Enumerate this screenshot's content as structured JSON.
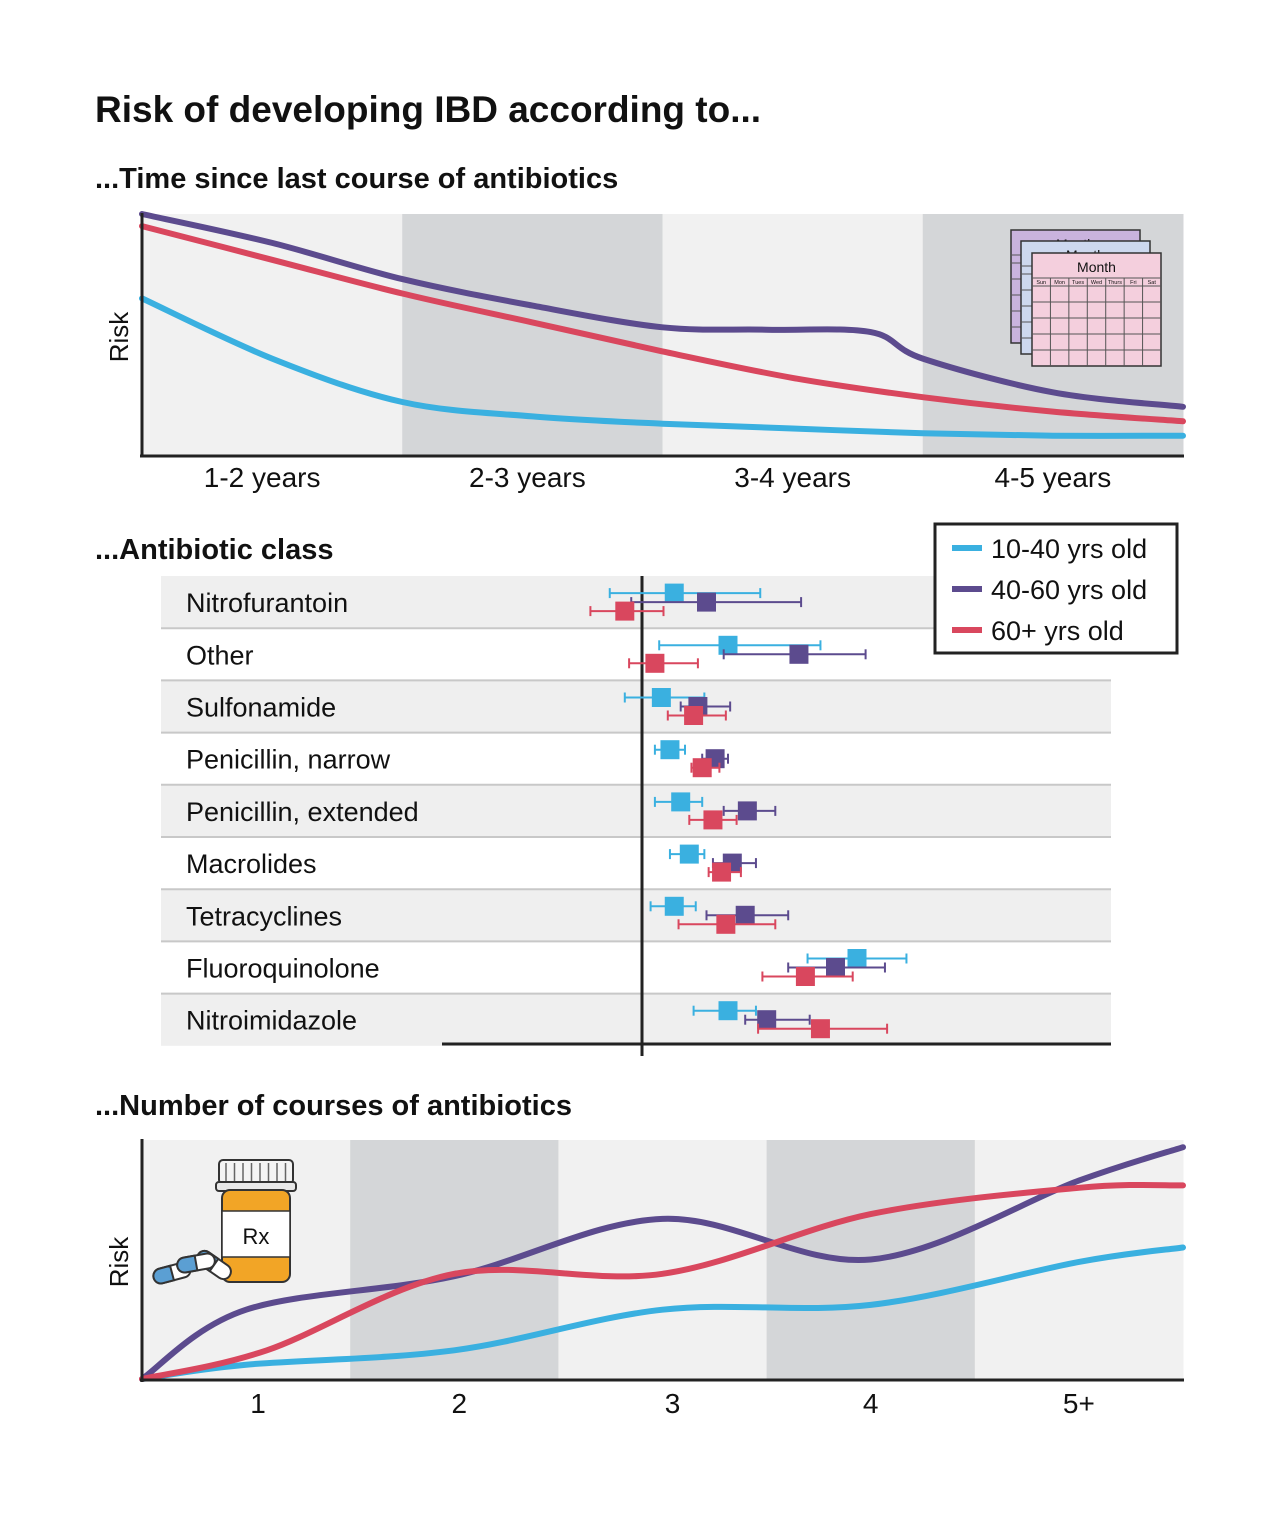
{
  "main_title": "Risk of developing IBD according to...",
  "colors": {
    "young": "#3ab0e0",
    "middle": "#5c4b8e",
    "old": "#d9475e",
    "band_dark": "#d4d6d8",
    "band_light": "#f1f1f1",
    "row_shade": "#efefef",
    "calendar_front": "#f4cfdd",
    "calendar_back1": "#cdd8ee",
    "calendar_back2": "#c9b3dd",
    "bottle": "#f2a526",
    "pill": "#5b9fd3"
  },
  "legend": {
    "position": "top-right",
    "items": [
      {
        "key": "young",
        "label": "10-40 yrs old"
      },
      {
        "key": "middle",
        "label": "40-60 yrs old"
      },
      {
        "key": "old",
        "label": "60+ yrs old"
      }
    ]
  },
  "icons": {
    "calendar": {
      "name": "calendar-icon",
      "labels": [
        "Month",
        "Month",
        "Month"
      ],
      "days": [
        "Sun",
        "Mon",
        "Tues",
        "Wed",
        "Thurs",
        "Fri",
        "Sat"
      ]
    },
    "bottle": {
      "name": "pill-bottle-icon",
      "label": "Rx"
    },
    "pills": {
      "name": "capsules-icon"
    }
  },
  "chart_data": [
    {
      "id": "time",
      "type": "line",
      "title": "...Time since last course of antibiotics",
      "ylabel": "Risk",
      "categories": [
        "1-2 years",
        "2-3 years",
        "3-4 years",
        "4-5 years"
      ],
      "xlim": [
        0,
        4
      ],
      "ylim": [
        0,
        100
      ],
      "series": [
        {
          "key": "young",
          "name": "10-40 yrs old",
          "x": [
            0,
            0.5,
            1,
            1.5,
            2,
            2.5,
            3,
            3.5,
            4
          ],
          "y": [
            65,
            40,
            22,
            16,
            13,
            11,
            9,
            8,
            8
          ]
        },
        {
          "key": "middle",
          "name": "40-60 yrs old",
          "x": [
            0,
            0.5,
            1,
            1.5,
            2,
            2.4,
            2.8,
            3,
            3.5,
            4
          ],
          "y": [
            100,
            88,
            73,
            62,
            53,
            52,
            51,
            40,
            26,
            20
          ]
        },
        {
          "key": "old",
          "name": "60+ yrs old",
          "x": [
            0,
            0.5,
            1,
            1.5,
            2,
            2.5,
            3,
            3.5,
            4
          ],
          "y": [
            95,
            81,
            67,
            55,
            43,
            32,
            24,
            18,
            14
          ]
        }
      ]
    },
    {
      "id": "class",
      "type": "forest",
      "title": "...Antibiotic class",
      "categories": [
        "Nitrofurantoin",
        "Other",
        "Sulfonamide",
        "Penicillin, narrow",
        "Penicillin, extended",
        "Macrolides",
        "Tetracyclines",
        "Fluoroquinolone",
        "Nitroimidazole"
      ],
      "reference_line": 1.0,
      "xlim": [
        0.0,
        2.45
      ],
      "series": [
        {
          "key": "young",
          "name": "10-40 yrs old",
          "estimate": [
            1.15,
            1.4,
            1.09,
            1.13,
            1.18,
            1.22,
            1.15,
            2.0,
            1.4
          ],
          "lower": [
            0.85,
            1.08,
            0.92,
            1.06,
            1.06,
            1.13,
            1.04,
            1.77,
            1.24
          ],
          "upper": [
            1.55,
            1.83,
            1.29,
            1.2,
            1.28,
            1.29,
            1.25,
            2.23,
            1.53
          ]
        },
        {
          "key": "middle",
          "name": "40-60 yrs old",
          "estimate": [
            1.3,
            1.73,
            1.26,
            1.34,
            1.49,
            1.42,
            1.48,
            1.9,
            1.58
          ],
          "lower": [
            0.95,
            1.38,
            1.18,
            1.28,
            1.38,
            1.33,
            1.3,
            1.68,
            1.48
          ],
          "upper": [
            1.74,
            2.04,
            1.41,
            1.4,
            1.62,
            1.53,
            1.68,
            2.13,
            1.78
          ]
        },
        {
          "key": "old",
          "name": "60+ yrs old",
          "estimate": [
            0.92,
            1.06,
            1.24,
            1.28,
            1.33,
            1.37,
            1.39,
            1.76,
            1.83
          ],
          "lower": [
            0.76,
            0.94,
            1.12,
            1.23,
            1.22,
            1.31,
            1.17,
            1.56,
            1.54
          ],
          "upper": [
            1.1,
            1.26,
            1.39,
            1.36,
            1.44,
            1.46,
            1.62,
            1.98,
            2.14
          ]
        }
      ]
    },
    {
      "id": "courses",
      "type": "line",
      "title": "...Number of courses of antibiotics",
      "ylabel": "Risk",
      "categories": [
        "1",
        "2",
        "3",
        "4",
        "5+"
      ],
      "xlim": [
        0,
        5
      ],
      "ylim": [
        0,
        100
      ],
      "series": [
        {
          "key": "young",
          "name": "10-40 yrs old",
          "x": [
            0,
            0.5,
            1.5,
            2.5,
            3.5,
            4.5,
            5
          ],
          "y": [
            0,
            6,
            12,
            29,
            31,
            49,
            55
          ]
        },
        {
          "key": "middle",
          "name": "40-60 yrs old",
          "x": [
            0,
            0.5,
            1.5,
            2.5,
            3.5,
            4.5,
            5
          ],
          "y": [
            0,
            29,
            43,
            67,
            50,
            83,
            97
          ]
        },
        {
          "key": "old",
          "name": "60+ yrs old",
          "x": [
            0,
            0.6,
            1.5,
            2.5,
            3.5,
            4.5,
            5
          ],
          "y": [
            0,
            12,
            44,
            44,
            69,
            80,
            81
          ]
        }
      ]
    }
  ]
}
